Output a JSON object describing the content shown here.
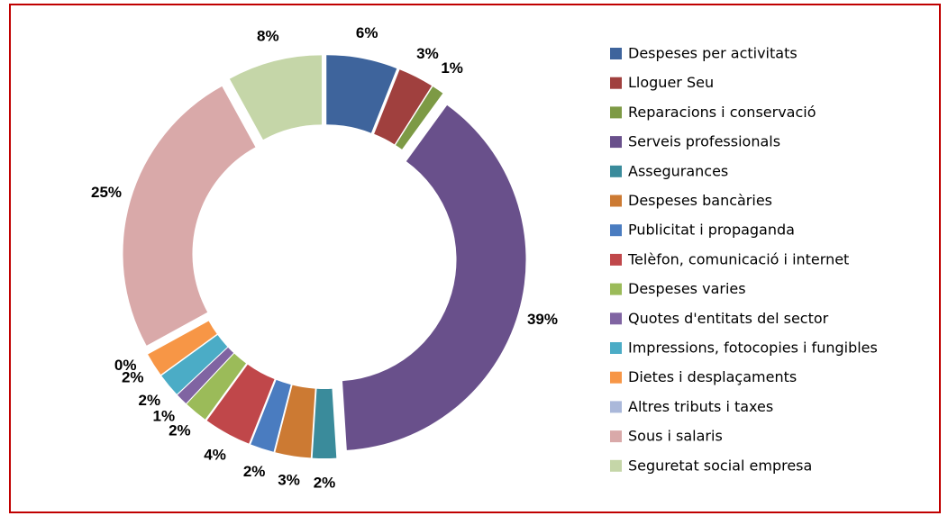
{
  "chart_data": {
    "type": "donut",
    "categories": [
      "Despeses per activitats",
      "Lloguer Seu",
      "Reparacions i conservació",
      "Serveis professionals",
      "Assegurances",
      "Despeses bancàries",
      "Publicitat i propaganda",
      "Telèfon, comunicació i internet",
      "Despeses varies",
      "Quotes d'entitats del sector",
      "Impressions, fotocopies i fungibles",
      "Dietes i desplaçaments",
      "Altres tributs i taxes",
      "Sous i salaris",
      "Seguretat social empresa"
    ],
    "values": [
      6,
      3,
      1,
      39,
      2,
      3,
      2,
      4,
      2,
      1,
      2,
      2,
      0,
      25,
      8
    ],
    "value_labels": [
      "6%",
      "3%",
      "1%",
      "39%",
      "2%",
      "3%",
      "2%",
      "4%",
      "2%",
      "1%",
      "2%",
      "2%",
      "0%",
      "25%",
      "8%"
    ],
    "colors": [
      "#3E649C",
      "#A0403E",
      "#7D9A45",
      "#69508B",
      "#3A8B9B",
      "#CC7A33",
      "#4A7CC0",
      "#C0474A",
      "#9BBB59",
      "#8064A2",
      "#4BACC6",
      "#F79646",
      "#AAB8DA",
      "#D9A9A9",
      "#C5D6A8"
    ],
    "legend": "right"
  }
}
